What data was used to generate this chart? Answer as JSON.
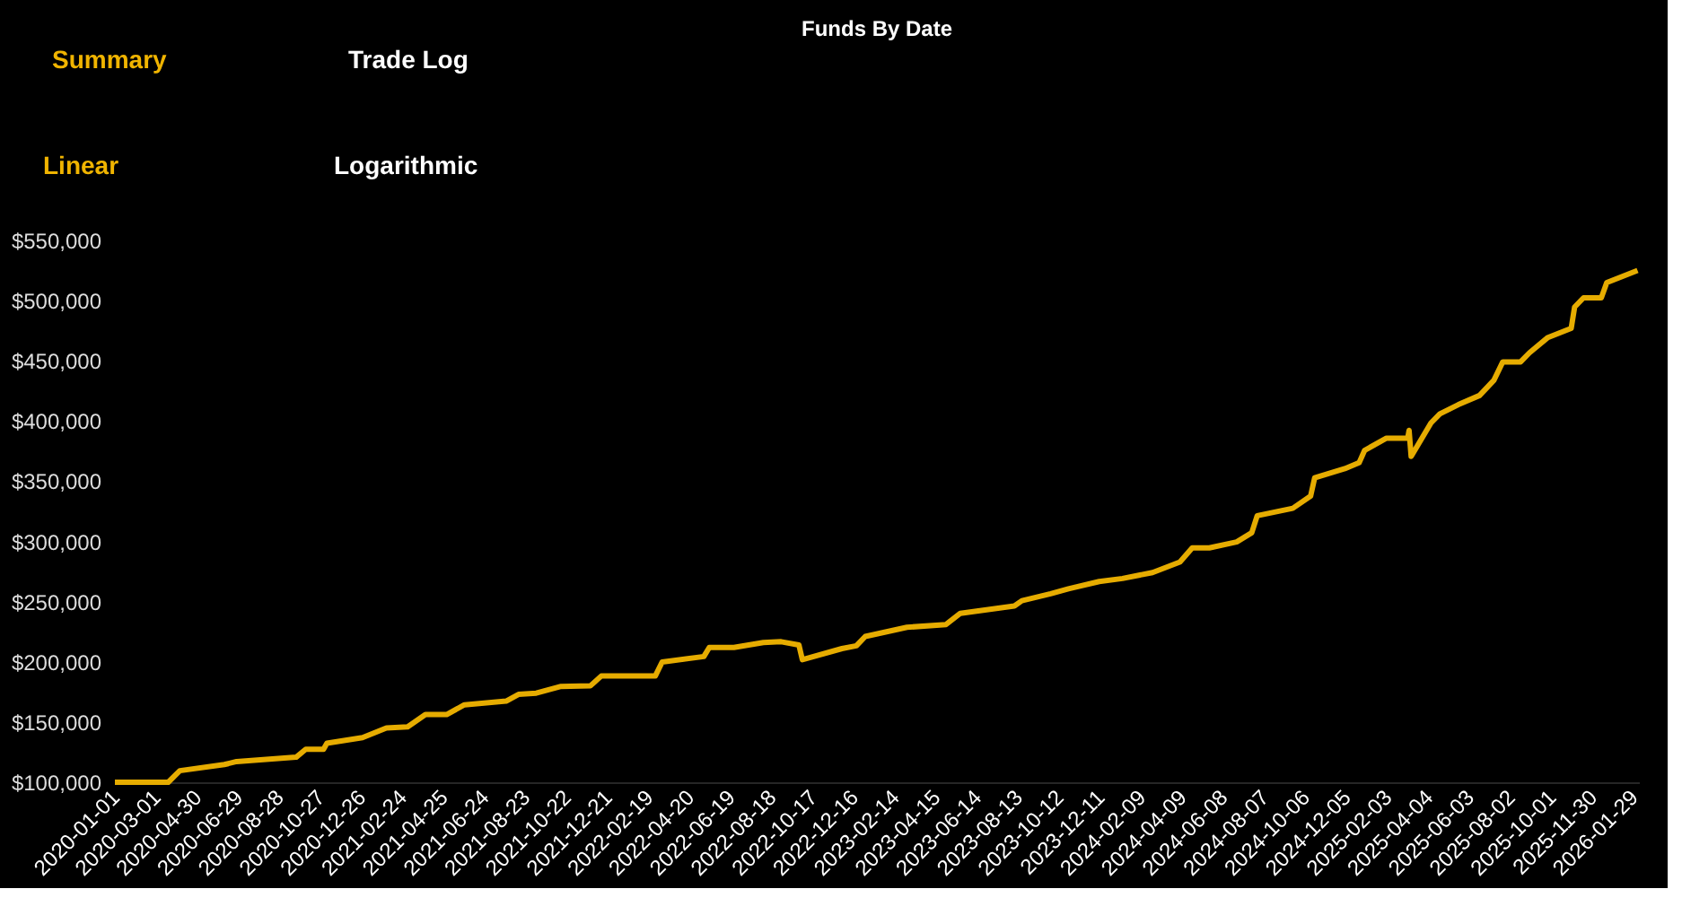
{
  "chart_data": {
    "type": "line",
    "title": "Funds By Date",
    "annotations": [
      "Summary",
      "Trade Log",
      "Linear",
      "Logarithmic"
    ],
    "x": [
      "2020-01-01",
      "2020-03-19",
      "2020-04-05",
      "2020-06-09",
      "2020-06-27",
      "2020-09-22",
      "2020-10-06",
      "2020-11-01",
      "2020-11-06",
      "2020-12-28",
      "2021-02-01",
      "2021-03-04",
      "2021-03-30",
      "2021-04-30",
      "2021-05-26",
      "2021-07-26",
      "2021-08-13",
      "2021-09-08",
      "2021-10-13",
      "2021-11-26",
      "2021-12-12",
      "2022-03-01",
      "2022-03-11",
      "2022-05-11",
      "2022-05-19",
      "2022-06-24",
      "2022-08-06",
      "2022-09-01",
      "2022-09-27",
      "2022-10-02",
      "2022-11-29",
      "2022-12-20",
      "2023-01-02",
      "2023-03-04",
      "2023-04-30",
      "2023-05-21",
      "2023-08-08",
      "2023-08-19",
      "2023-09-30",
      "2023-10-26",
      "2023-12-10",
      "2024-01-13",
      "2024-02-26",
      "2024-04-06",
      "2024-04-24",
      "2024-05-19",
      "2024-06-28",
      "2024-07-20",
      "2024-07-28",
      "2024-09-18",
      "2024-10-14",
      "2024-10-20",
      "2024-12-03",
      "2024-12-24",
      "2025-01-01",
      "2025-02-02",
      "2025-03-05",
      "2025-03-07",
      "2025-03-10",
      "2025-04-08",
      "2025-04-21",
      "2025-05-18",
      "2025-06-18",
      "2025-07-09",
      "2025-07-22",
      "2025-08-17",
      "2025-08-30",
      "2025-09-26",
      "2025-10-30",
      "2025-11-04",
      "2025-11-17",
      "2025-12-13",
      "2025-12-21",
      "2026-02-04"
    ],
    "series": [
      {
        "color": "#e6ac00",
        "values": [
          100000,
          100000,
          109600,
          114700,
          117200,
          120800,
          127400,
          127400,
          132400,
          137000,
          145100,
          146000,
          156200,
          156200,
          164300,
          167400,
          173000,
          174000,
          179500,
          180000,
          188200,
          188200,
          199800,
          204400,
          212000,
          212000,
          216000,
          216700,
          214000,
          201800,
          211000,
          213300,
          221100,
          228700,
          231000,
          240300,
          246400,
          250800,
          256600,
          260600,
          266700,
          269200,
          274200,
          282900,
          294600,
          294600,
          299600,
          307200,
          321400,
          327500,
          337600,
          352800,
          360400,
          365400,
          375600,
          385800,
          385800,
          392300,
          370600,
          398400,
          405900,
          413600,
          421200,
          433900,
          449100,
          449100,
          456700,
          469400,
          477000,
          494700,
          502300,
          502300,
          515000,
          525100
        ]
      }
    ],
    "xticks": [
      "2020-01-01",
      "2020-03-01",
      "2020-04-30",
      "2020-06-29",
      "2020-08-28",
      "2020-10-27",
      "2020-12-26",
      "2021-02-24",
      "2021-04-25",
      "2021-06-24",
      "2021-08-23",
      "2021-10-22",
      "2021-12-21",
      "2022-02-19",
      "2022-04-20",
      "2022-06-19",
      "2022-08-18",
      "2022-10-17",
      "2022-12-16",
      "2023-02-14",
      "2023-04-15",
      "2023-06-14",
      "2023-08-13",
      "2023-10-12",
      "2023-12-11",
      "2024-02-09",
      "2024-04-09",
      "2024-06-08",
      "2024-08-07",
      "2024-10-06",
      "2024-12-05",
      "2025-02-03",
      "2025-04-04",
      "2025-06-03",
      "2025-08-02",
      "2025-10-01",
      "2025-11-30",
      "2026-01-29"
    ],
    "xlim": [
      "2020-01-01",
      "2026-02-06"
    ],
    "ylim": [
      100000,
      550000
    ],
    "yticks": [
      {
        "value": 100000,
        "label": "$100,000"
      },
      {
        "value": 150000,
        "label": "$150,000"
      },
      {
        "value": 200000,
        "label": "$200,000"
      },
      {
        "value": 250000,
        "label": "$250,000"
      },
      {
        "value": 300000,
        "label": "$300,000"
      },
      {
        "value": 350000,
        "label": "$350,000"
      },
      {
        "value": 400000,
        "label": "$400,000"
      },
      {
        "value": 450000,
        "label": "$450,000"
      },
      {
        "value": 500000,
        "label": "$500,000"
      },
      {
        "value": 550000,
        "label": "$550,000"
      }
    ],
    "grid": false,
    "marker": "none",
    "line_style": "solid"
  }
}
